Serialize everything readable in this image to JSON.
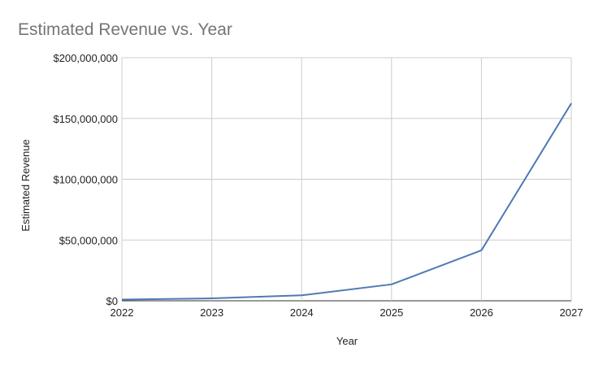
{
  "chart_data": {
    "type": "line",
    "title": "Estimated Revenue vs. Year",
    "xlabel": "Year",
    "ylabel": "Estimated Revenue",
    "x": [
      2022,
      2023,
      2024,
      2025,
      2026,
      2027
    ],
    "x_tick_labels": [
      "2022",
      "2023",
      "2024",
      "2025",
      "2026",
      "2027"
    ],
    "y_tick_values": [
      0,
      50000000,
      100000000,
      150000000,
      200000000
    ],
    "y_tick_labels": [
      "$0",
      "$50,000,000",
      "$100,000,000",
      "$150,000,000",
      "$200,000,000"
    ],
    "series": [
      {
        "values": [
          1000000,
          2000000,
          4500000,
          13500000,
          41500000,
          162500000
        ]
      }
    ],
    "xlim": [
      2022,
      2027
    ],
    "ylim": [
      0,
      200000000
    ],
    "grid": true,
    "legend": "none",
    "colors": {
      "line": "#4e7ab5",
      "grid": "#cccccc",
      "title": "#757575"
    }
  }
}
